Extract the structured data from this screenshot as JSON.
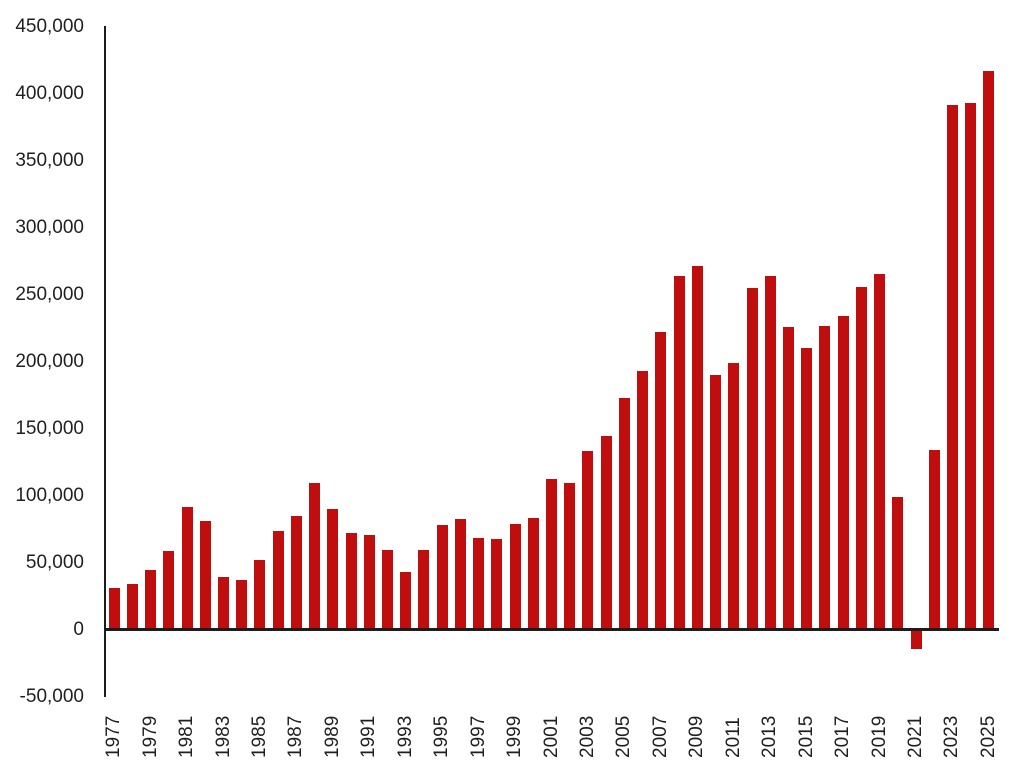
{
  "chart_data": {
    "type": "bar",
    "title": "",
    "xlabel": "",
    "ylabel": "",
    "categories": [
      1977,
      1978,
      1979,
      1980,
      1981,
      1982,
      1983,
      1984,
      1985,
      1986,
      1987,
      1988,
      1989,
      1990,
      1991,
      1992,
      1993,
      1994,
      1995,
      1996,
      1997,
      1998,
      1999,
      2000,
      2001,
      2002,
      2003,
      2004,
      2005,
      2006,
      2007,
      2008,
      2009,
      2010,
      2011,
      2012,
      2013,
      2014,
      2015,
      2016,
      2017,
      2018,
      2019,
      2020,
      2021,
      2022,
      2023,
      2024,
      2025
    ],
    "values": [
      31500,
      34000,
      44500,
      59000,
      92000,
      81500,
      39500,
      37500,
      52500,
      74000,
      85000,
      110000,
      90000,
      72500,
      71000,
      60000,
      43000,
      60000,
      78500,
      83000,
      69000,
      68000,
      79000,
      83500,
      112500,
      110000,
      133500,
      144500,
      173000,
      193000,
      222500,
      264000,
      271500,
      190500,
      199500,
      255000,
      264500,
      226500,
      210500,
      227000,
      234000,
      256000,
      265500,
      99500,
      -14000,
      134500,
      391500,
      393500,
      417500
    ],
    "ylim": [
      -50000,
      450000
    ],
    "y_tick_step": 50000,
    "y_tick_labels": [
      "450,000",
      "400,000",
      "350,000",
      "300,000",
      "250,000",
      "200,000",
      "150,000",
      "100,000",
      "50,000",
      "0",
      "-50,000"
    ],
    "x_tick_labels": [
      "1977",
      "1979",
      "1981",
      "1983",
      "1985",
      "1987",
      "1989",
      "1991",
      "1993",
      "1995",
      "1997",
      "1999",
      "2001",
      "2003",
      "2005",
      "2007",
      "2009",
      "2011",
      "2013",
      "2015",
      "2017",
      "2019",
      "2021",
      "2023",
      "2025"
    ],
    "grid": false,
    "legend": false,
    "colors": {
      "bar": "#c00d0d",
      "axis": "#1c1c1c",
      "text": "#1f1f1f",
      "background": "#ffffff"
    }
  }
}
